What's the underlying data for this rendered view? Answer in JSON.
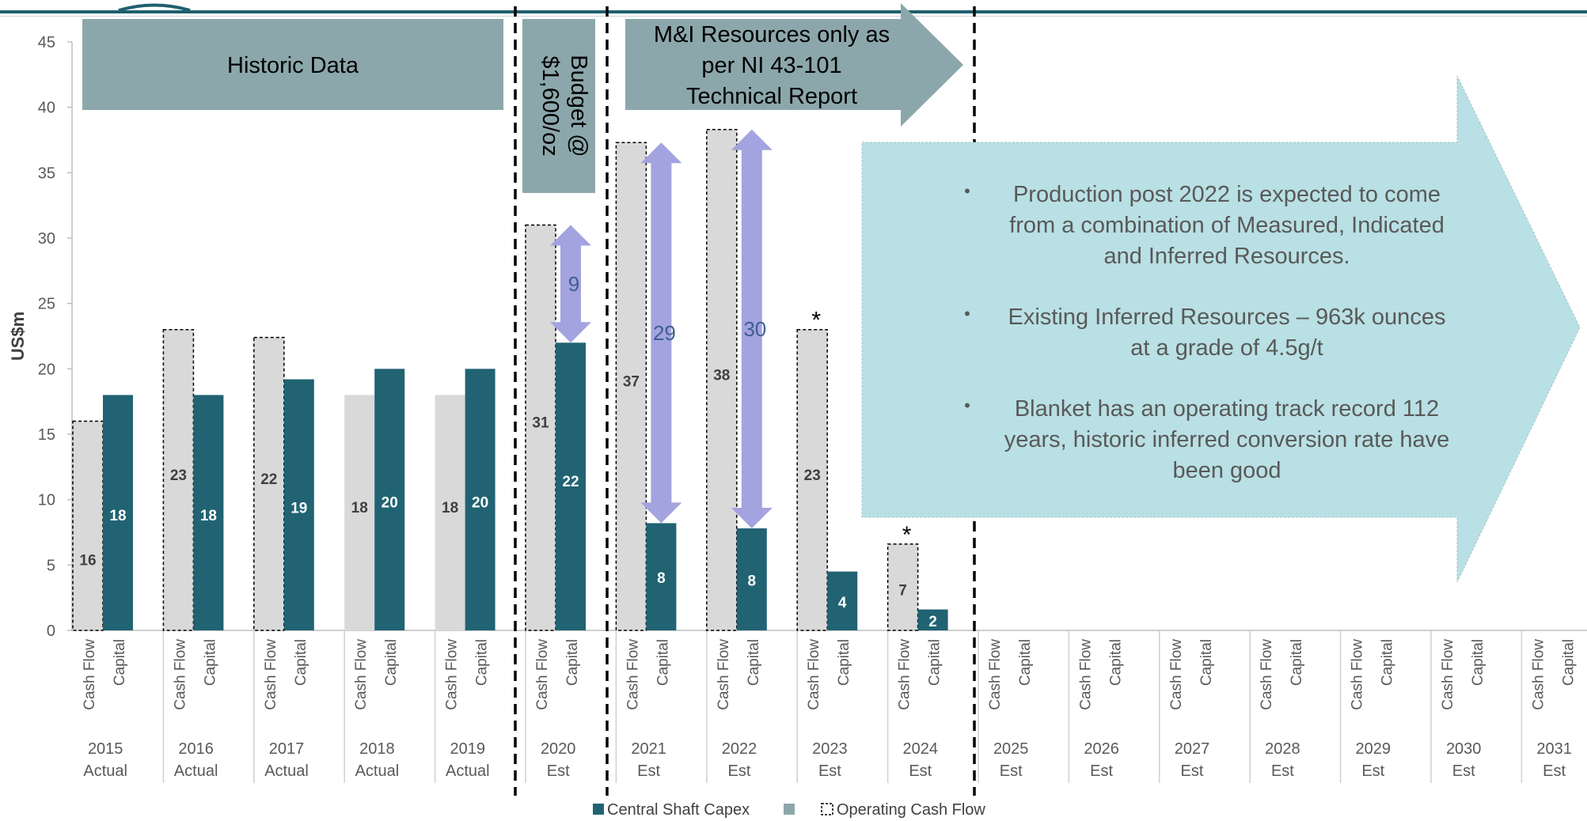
{
  "chart_data": {
    "type": "bar",
    "ylabel": "US$m",
    "ylim": [
      0,
      45
    ],
    "yticks": [
      0,
      5,
      10,
      15,
      20,
      25,
      30,
      35,
      40,
      45
    ],
    "bar_labels": [
      "Cash Flow",
      "Capital"
    ],
    "categories": [
      {
        "year": "2015",
        "sub": "Actual"
      },
      {
        "year": "2016",
        "sub": "Actual"
      },
      {
        "year": "2017",
        "sub": "Actual"
      },
      {
        "year": "2018",
        "sub": "Actual"
      },
      {
        "year": "2019",
        "sub": "Actual"
      },
      {
        "year": "2020",
        "sub": "Est"
      },
      {
        "year": "2021",
        "sub": "Est"
      },
      {
        "year": "2022",
        "sub": "Est"
      },
      {
        "year": "2023",
        "sub": "Est"
      },
      {
        "year": "2024",
        "sub": "Est"
      },
      {
        "year": "2025",
        "sub": "Est"
      },
      {
        "year": "2026",
        "sub": "Est"
      },
      {
        "year": "2027",
        "sub": "Est"
      },
      {
        "year": "2028",
        "sub": "Est"
      },
      {
        "year": "2029",
        "sub": "Est"
      },
      {
        "year": "2030",
        "sub": "Est"
      },
      {
        "year": "2031",
        "sub": "Est"
      }
    ],
    "series": [
      {
        "name": "Operating Cash Flow",
        "color": "#d9d9d9",
        "values": [
          16,
          23,
          22.4,
          18,
          18,
          31,
          37.3,
          38.3,
          23,
          6.6,
          null,
          null,
          null,
          null,
          null,
          null,
          null
        ],
        "labels": [
          "16",
          "23",
          "22",
          "18",
          "18",
          "31",
          "37",
          "38",
          "23",
          "7",
          "",
          "",
          "",
          "",
          "",
          "",
          ""
        ],
        "dashed_outline_indexes": [
          0,
          1,
          2,
          5,
          6,
          7,
          8,
          9
        ]
      },
      {
        "name": "Central Shaft Capex",
        "color": "#216373",
        "values": [
          18,
          18,
          19.2,
          20,
          20,
          22,
          8.2,
          7.8,
          4.5,
          1.6,
          null,
          null,
          null,
          null,
          null,
          null,
          null
        ],
        "labels": [
          "18",
          "18",
          "19",
          "20",
          "20",
          "22",
          "8",
          "8",
          "4",
          "2",
          "",
          "",
          "",
          "",
          "",
          "",
          ""
        ]
      }
    ],
    "gap_arrows": [
      {
        "category": "2020",
        "from": 22,
        "to": 31,
        "label": "9"
      },
      {
        "category": "2021",
        "from": 8.2,
        "to": 37.3,
        "label": "29"
      },
      {
        "category": "2022",
        "from": 7.8,
        "to": 38.3,
        "label": "30"
      }
    ],
    "asterisks": [
      {
        "category": "2023",
        "text": "*"
      },
      {
        "category": "2024",
        "text": "*"
      }
    ],
    "legend": {
      "placement": "bottom",
      "items": [
        {
          "label": "Central Shaft Capex",
          "color": "#216373",
          "style": "solid"
        },
        {
          "label": "",
          "color": "#8ca7ab",
          "style": "solid"
        },
        {
          "label": "Operating Cash Flow",
          "color": "#ffffff",
          "style": "dashed"
        }
      ]
    },
    "annotations": {
      "historic_box": "Historic Data",
      "budget_box_lines": [
        "Budget @",
        "$1,600/oz"
      ],
      "mi_arrow_lines": [
        "M&I Resources only as",
        "per NI 43-101",
        "Technical Report"
      ],
      "bullets": [
        {
          "lines": [
            "Production post 2022 is expected to come",
            "from a combination of Measured, Indicated",
            "and Inferred Resources."
          ]
        },
        {
          "lines": [
            "Existing Inferred Resources – 963k ounces",
            "at a grade of 4.5g/t"
          ]
        },
        {
          "lines": [
            "Blanket has an operating track record 112",
            "years, historic inferred conversion rate have",
            "been good"
          ]
        }
      ]
    },
    "colors": {
      "accent": "#216373",
      "annotation_box": "#8ca7ab",
      "arrow": "#a3a3e0",
      "arrow_label": "#3f5f8f",
      "info_arrow": "#b9e0e4",
      "header_line": "#1f5f6e"
    }
  }
}
